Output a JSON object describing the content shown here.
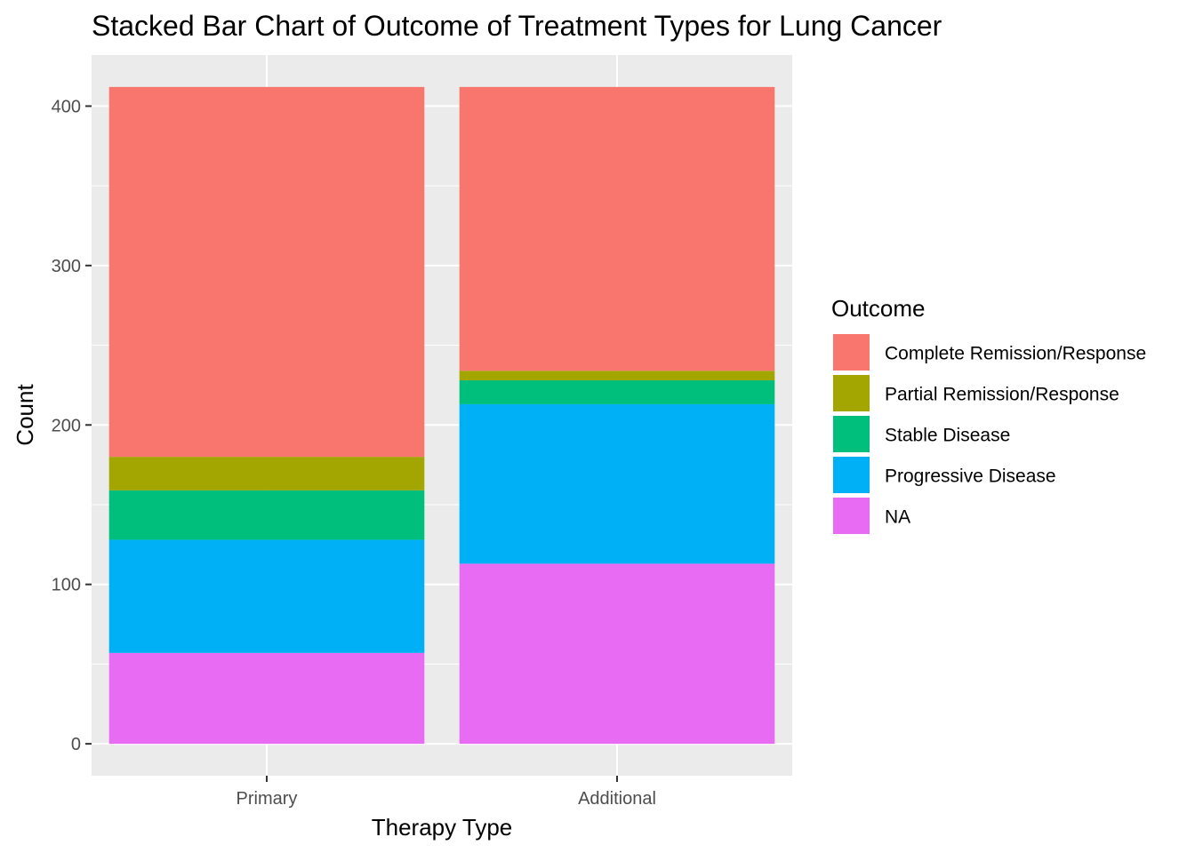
{
  "chart_data": {
    "type": "bar",
    "stacked": true,
    "title": "Stacked Bar Chart of Outcome of Treatment Types for Lung Cancer",
    "xlabel": "Therapy Type",
    "ylabel": "Count",
    "categories": [
      "Primary",
      "Additional"
    ],
    "ylim": [
      -20,
      432
    ],
    "yticks": [
      0,
      100,
      200,
      300,
      400
    ],
    "grid": true,
    "legend": {
      "title": "Outcome",
      "position": "right"
    },
    "series": [
      {
        "name": "Complete Remission/Response",
        "color": "#F8766D",
        "values": [
          232,
          178
        ]
      },
      {
        "name": "Partial Remission/Response",
        "color": "#A3A500",
        "values": [
          21,
          6
        ]
      },
      {
        "name": "Stable Disease",
        "color": "#00BF7D",
        "values": [
          31,
          15
        ]
      },
      {
        "name": "Progressive Disease",
        "color": "#00B0F6",
        "values": [
          71,
          100
        ]
      },
      {
        "name": "NA",
        "color": "#E76BF3",
        "values": [
          57,
          113
        ]
      }
    ],
    "stack_order_bottom_to_top": [
      "NA",
      "Progressive Disease",
      "Stable Disease",
      "Partial Remission/Response",
      "Complete Remission/Response"
    ]
  }
}
